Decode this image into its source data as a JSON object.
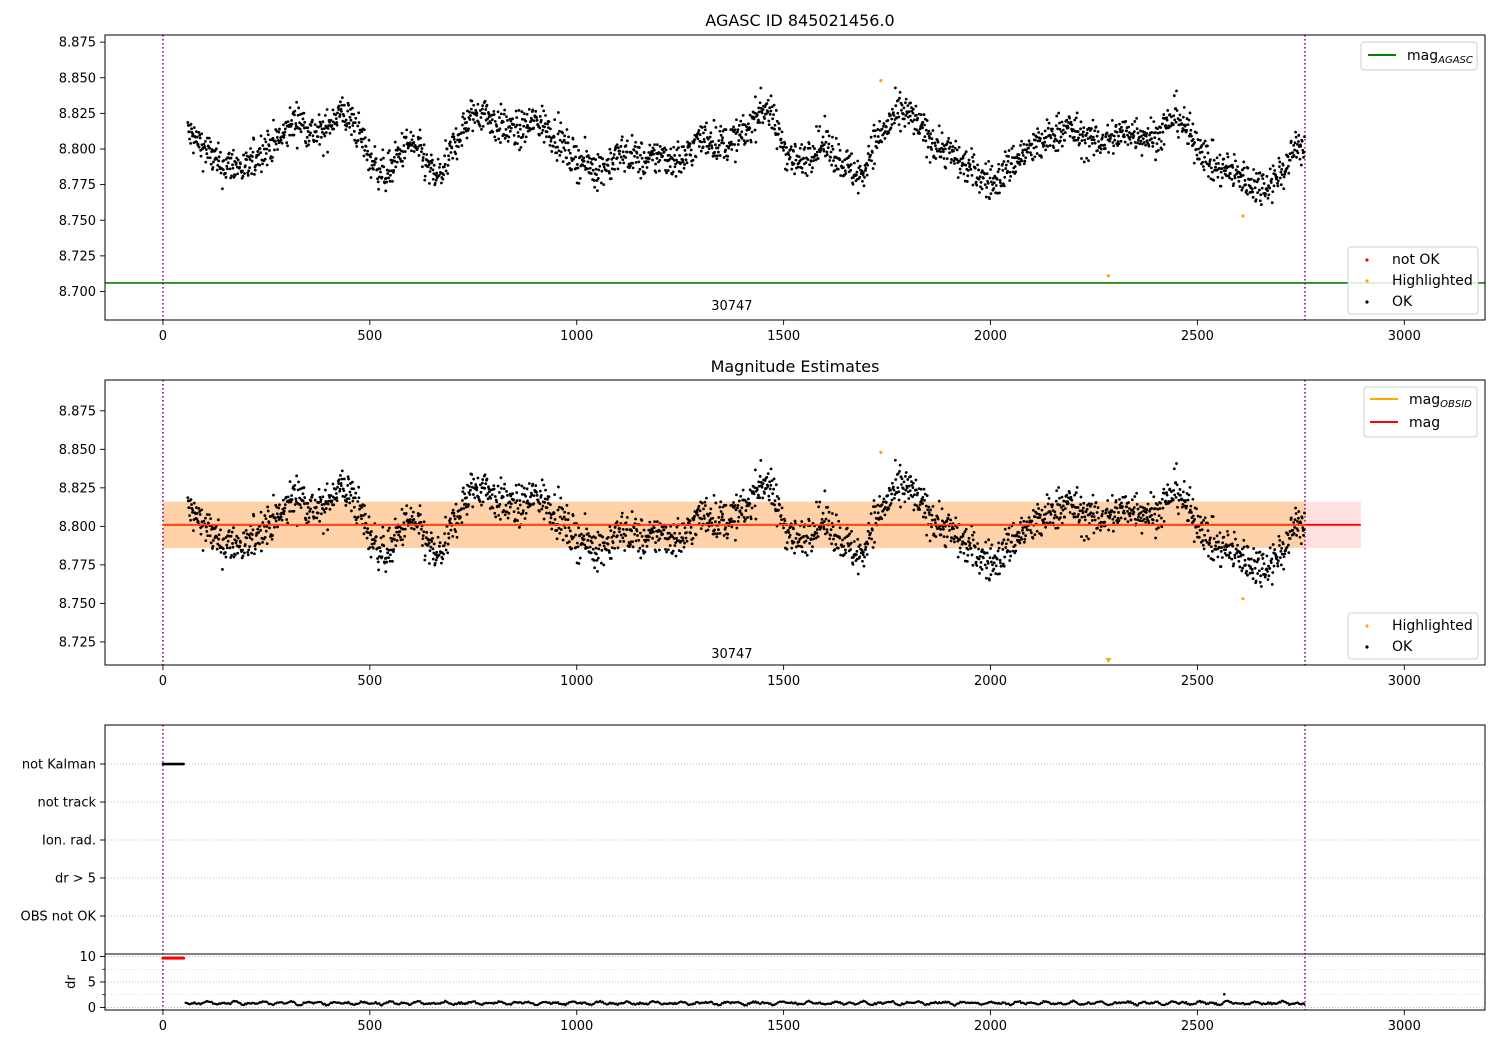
{
  "chart_data": [
    {
      "type": "scatter",
      "title": "AGASC ID 845021456.0",
      "xlim": [
        -140,
        3195
      ],
      "ylim": [
        8.68,
        8.88
      ],
      "xticks": [
        0,
        500,
        1000,
        1500,
        2000,
        2500,
        3000
      ],
      "yticks": [
        8.7,
        8.725,
        8.75,
        8.775,
        8.8,
        8.825,
        8.85,
        8.875
      ],
      "grid": false,
      "legends": [
        {
          "placement": "top-right",
          "entries": [
            {
              "label": "mag",
              "sub": "AGASC",
              "color": "#008000"
            }
          ]
        },
        {
          "placement": "bottom-right",
          "entries": [
            {
              "label": "not OK",
              "color": "#ff0000"
            },
            {
              "label": "Highlighted",
              "color": "#ffa500"
            },
            {
              "label": "OK",
              "color": "#000000"
            }
          ]
        }
      ],
      "annotations": [
        {
          "text": "30747",
          "x": 1375,
          "y": 8.689
        }
      ],
      "vlines": [
        0,
        2760
      ],
      "hlines": [
        {
          "y": 8.706,
          "x0": -140,
          "x1": 3195,
          "color": "#008000"
        }
      ],
      "highlighted": [
        [
          1735,
          8.848
        ],
        [
          2285,
          8.711
        ],
        [
          2610,
          8.753
        ]
      ],
      "ok_segments": [
        [
          60,
          8.812
        ],
        [
          80,
          8.806
        ],
        [
          110,
          8.798
        ],
        [
          140,
          8.787
        ],
        [
          170,
          8.79
        ],
        [
          200,
          8.785
        ],
        [
          230,
          8.797
        ],
        [
          260,
          8.803
        ],
        [
          290,
          8.808
        ],
        [
          310,
          8.818
        ],
        [
          330,
          8.82
        ],
        [
          360,
          8.812
        ],
        [
          390,
          8.81
        ],
        [
          410,
          8.822
        ],
        [
          430,
          8.826
        ],
        [
          460,
          8.818
        ],
        [
          480,
          8.808
        ],
        [
          500,
          8.793
        ],
        [
          520,
          8.787
        ],
        [
          540,
          8.782
        ],
        [
          560,
          8.79
        ],
        [
          580,
          8.8
        ],
        [
          600,
          8.804
        ],
        [
          620,
          8.798
        ],
        [
          640,
          8.787
        ],
        [
          660,
          8.78
        ],
        [
          680,
          8.786
        ],
        [
          700,
          8.8
        ],
        [
          720,
          8.812
        ],
        [
          750,
          8.824
        ],
        [
          780,
          8.826
        ],
        [
          800,
          8.818
        ],
        [
          830,
          8.815
        ],
        [
          860,
          8.812
        ],
        [
          900,
          8.82
        ],
        [
          930,
          8.815
        ],
        [
          960,
          8.805
        ],
        [
          990,
          8.794
        ],
        [
          1020,
          8.79
        ],
        [
          1050,
          8.786
        ],
        [
          1080,
          8.79
        ],
        [
          1110,
          8.797
        ],
        [
          1140,
          8.795
        ],
        [
          1170,
          8.79
        ],
        [
          1200,
          8.796
        ],
        [
          1230,
          8.793
        ],
        [
          1260,
          8.793
        ],
        [
          1290,
          8.805
        ],
        [
          1320,
          8.808
        ],
        [
          1350,
          8.803
        ],
        [
          1380,
          8.806
        ],
        [
          1410,
          8.812
        ],
        [
          1440,
          8.826
        ],
        [
          1460,
          8.83
        ],
        [
          1480,
          8.815
        ],
        [
          1510,
          8.797
        ],
        [
          1540,
          8.79
        ],
        [
          1570,
          8.8
        ],
        [
          1600,
          8.804
        ],
        [
          1630,
          8.795
        ],
        [
          1660,
          8.786
        ],
        [
          1690,
          8.78
        ],
        [
          1710,
          8.8
        ],
        [
          1740,
          8.812
        ],
        [
          1770,
          8.823
        ],
        [
          1800,
          8.825
        ],
        [
          1830,
          8.815
        ],
        [
          1860,
          8.805
        ],
        [
          1890,
          8.8
        ],
        [
          1920,
          8.793
        ],
        [
          1950,
          8.786
        ],
        [
          1980,
          8.78
        ],
        [
          2010,
          8.776
        ],
        [
          2040,
          8.787
        ],
        [
          2070,
          8.795
        ],
        [
          2100,
          8.8
        ],
        [
          2130,
          8.805
        ],
        [
          2160,
          8.812
        ],
        [
          2190,
          8.815
        ],
        [
          2220,
          8.808
        ],
        [
          2250,
          8.805
        ],
        [
          2280,
          8.806
        ],
        [
          2310,
          8.81
        ],
        [
          2340,
          8.812
        ],
        [
          2370,
          8.81
        ],
        [
          2400,
          8.808
        ],
        [
          2430,
          8.818
        ],
        [
          2450,
          8.825
        ],
        [
          2480,
          8.81
        ],
        [
          2510,
          8.8
        ],
        [
          2540,
          8.787
        ],
        [
          2570,
          8.785
        ],
        [
          2600,
          8.782
        ],
        [
          2630,
          8.776
        ],
        [
          2660,
          8.774
        ],
        [
          2690,
          8.78
        ],
        [
          2720,
          8.79
        ],
        [
          2740,
          8.805
        ],
        [
          2755,
          8.8
        ]
      ]
    },
    {
      "type": "scatter",
      "title": "Magnitude Estimates",
      "xlim": [
        -140,
        3195
      ],
      "ylim": [
        8.71,
        8.895
      ],
      "xticks": [
        0,
        500,
        1000,
        1500,
        2000,
        2500,
        3000
      ],
      "yticks": [
        8.725,
        8.75,
        8.775,
        8.8,
        8.825,
        8.85,
        8.875
      ],
      "grid": false,
      "legends": [
        {
          "placement": "top-right",
          "entries": [
            {
              "label": "mag",
              "sub": "OBSID",
              "color": "#ffa500"
            },
            {
              "label": "mag",
              "sub": "",
              "color": "#ff0000"
            }
          ]
        },
        {
          "placement": "bottom-right",
          "entries": [
            {
              "label": "Highlighted",
              "color": "#ffa500"
            },
            {
              "label": "OK",
              "color": "#000000"
            }
          ]
        }
      ],
      "annotations": [
        {
          "text": "30747",
          "x": 1375,
          "y": 8.7165
        }
      ],
      "vlines": [
        0,
        2760
      ],
      "mag_line": {
        "y": 8.801,
        "x0": 0,
        "x1": 2895,
        "color": "#ff0000"
      },
      "mag_band": {
        "y0": 8.786,
        "y1": 8.816,
        "x0": 0,
        "x1": 2895
      },
      "obsid_band": {
        "y0": 8.786,
        "y1": 8.816,
        "x0": 0,
        "x1": 2760
      },
      "highlighted": [
        [
          1735,
          8.848
        ],
        [
          2610,
          8.753
        ],
        [
          2285,
          8.712
        ]
      ]
    },
    {
      "type": "scatter",
      "title": "",
      "xlim": [
        -140,
        3195
      ],
      "flag_categories": [
        "not Kalman",
        "not track",
        "Ion. rad.",
        "dr > 5",
        "OBS not OK"
      ],
      "flags": {
        "not Kalman": [
          0,
          50
        ]
      },
      "dr_ylim": [
        -0.5,
        10.5
      ],
      "dr_yticks": [
        0,
        5,
        10
      ],
      "dr_ylabel": "dr",
      "xticks": [
        0,
        500,
        1000,
        1500,
        2000,
        2500,
        3000
      ],
      "grid": true,
      "vlines": [
        0,
        2760
      ]
    }
  ]
}
